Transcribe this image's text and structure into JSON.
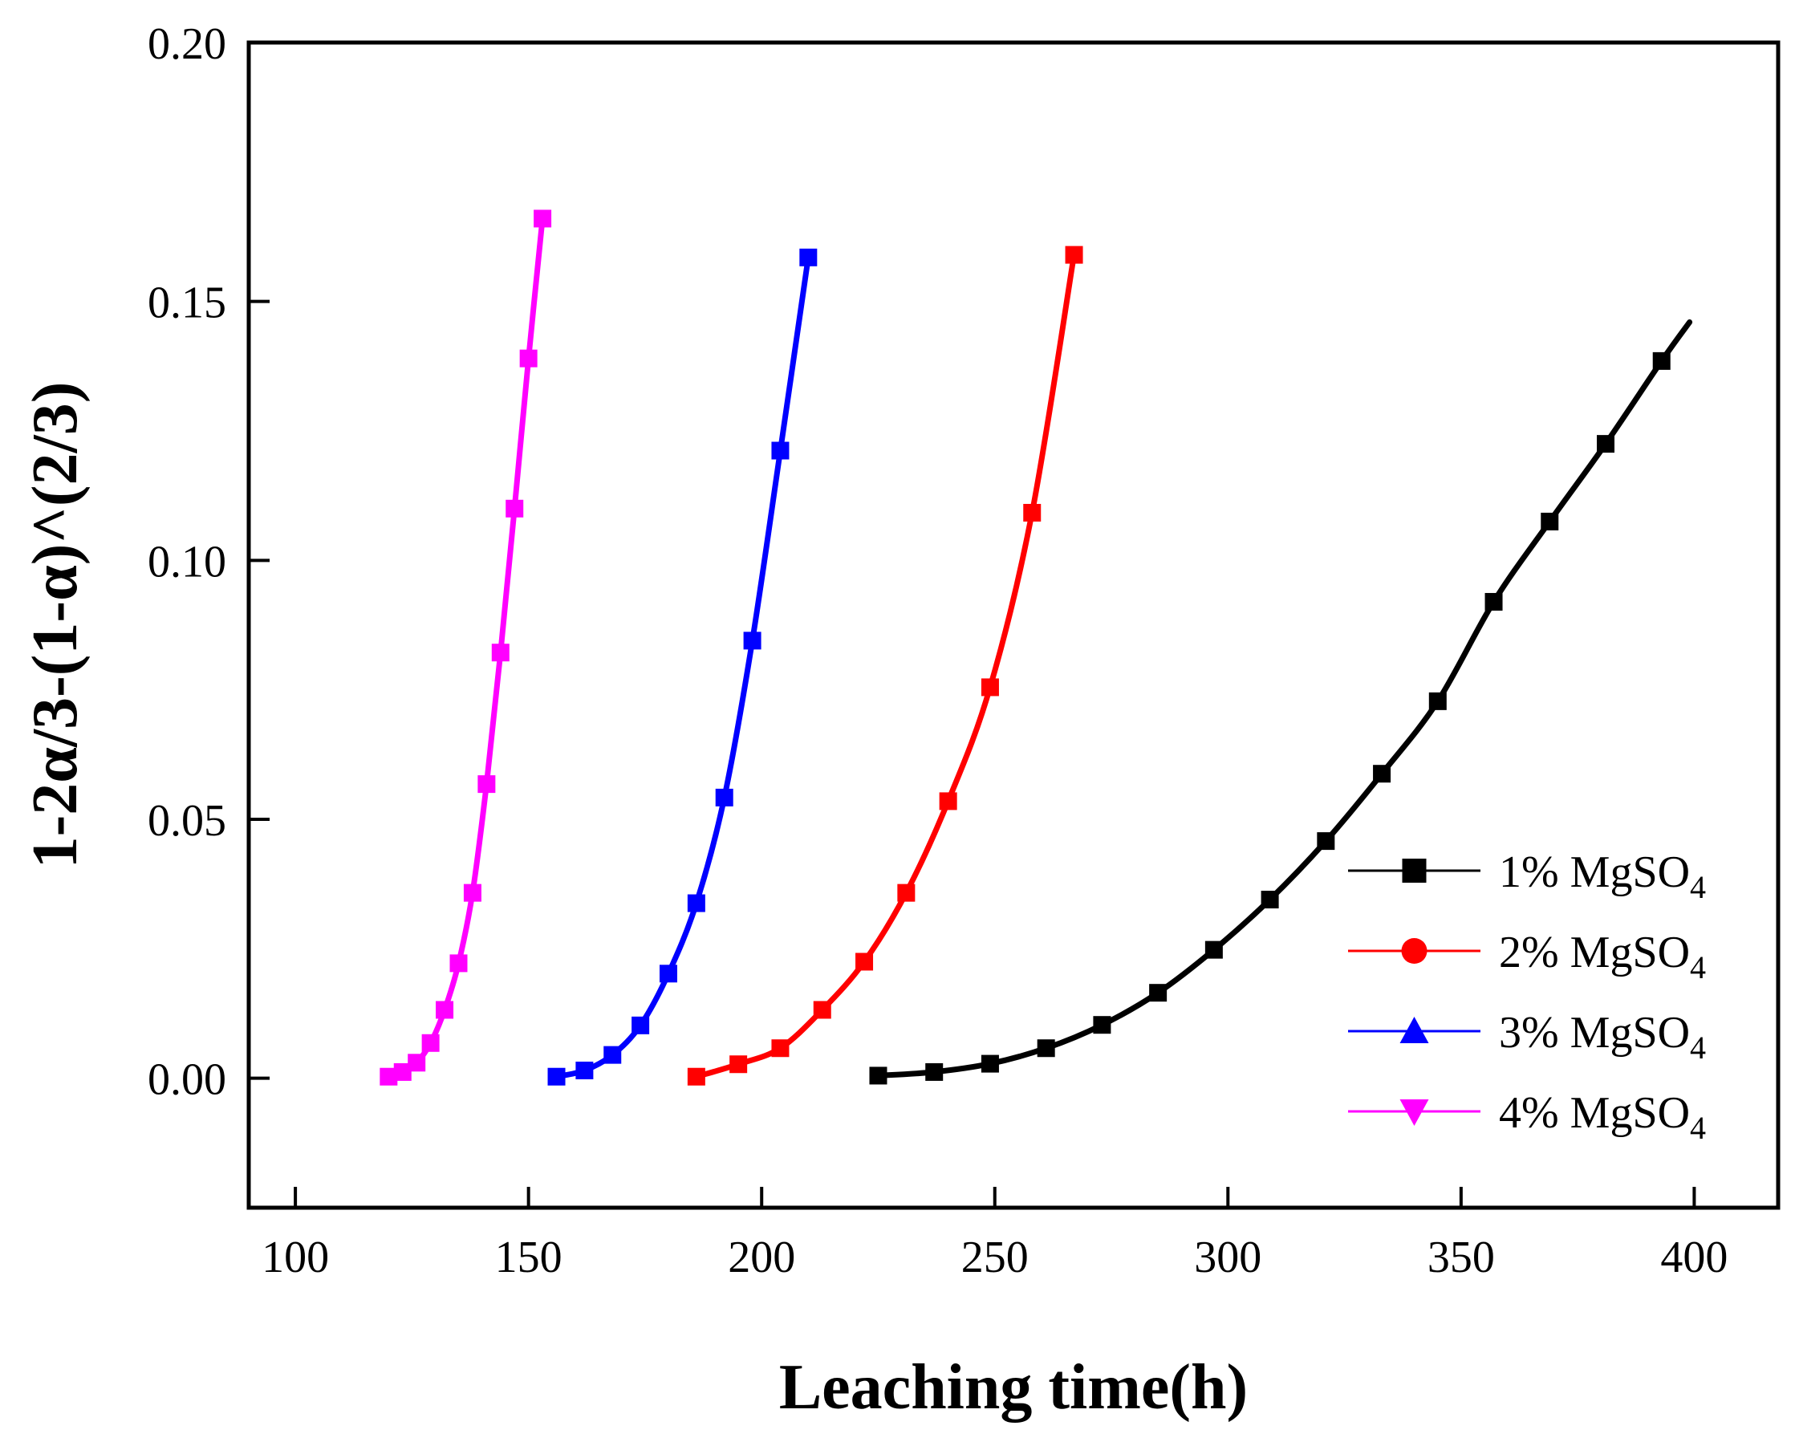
{
  "chart_data": {
    "type": "line",
    "title": "",
    "xlabel": "Leaching time(h)",
    "ylabel": "1-2α/3-(1-α)^(2/3)",
    "xlim": [
      90,
      418
    ],
    "ylim": [
      -0.025,
      0.2
    ],
    "xticks": [
      100,
      150,
      200,
      250,
      300,
      350,
      400
    ],
    "yticks": [
      0.0,
      0.05,
      0.1,
      0.15,
      0.2
    ],
    "xtick_labels": [
      "100",
      "150",
      "200",
      "250",
      "300",
      "350",
      "400"
    ],
    "ytick_labels": [
      "0.00",
      "0.05",
      "0.10",
      "0.15",
      "0.20"
    ],
    "legend_position": "bottom-right",
    "series": [
      {
        "name": "1% MgSO",
        "subscript": "4",
        "color": "#000000",
        "marker": "square",
        "legend_marker": "square",
        "x": [
          225,
          237,
          249,
          261,
          273,
          285,
          297,
          309,
          321,
          333,
          345,
          357,
          369,
          381,
          393
        ],
        "y": [
          0.0005,
          0.0012,
          0.0028,
          0.0058,
          0.0103,
          0.0165,
          0.0248,
          0.0345,
          0.0458,
          0.0588,
          0.0728,
          0.092,
          0.1075,
          0.1225,
          0.1385
        ],
        "line_end": [
          399,
          0.146
        ]
      },
      {
        "name": "2% MgSO",
        "subscript": "4",
        "color": "#ff0000",
        "marker": "square",
        "legend_marker": "circle",
        "x": [
          186,
          195,
          204,
          213,
          222,
          231,
          240,
          249,
          258,
          267
        ],
        "y": [
          0.0003,
          0.0027,
          0.0058,
          0.0132,
          0.0225,
          0.0358,
          0.0535,
          0.0755,
          0.1092,
          0.159
        ]
      },
      {
        "name": "3% MgSO",
        "subscript": "4",
        "color": "#0000ff",
        "marker": "square",
        "legend_marker": "triangle-up",
        "x": [
          156,
          162,
          168,
          174,
          180,
          186,
          192,
          198,
          204,
          210
        ],
        "y": [
          0.0003,
          0.0015,
          0.0045,
          0.0102,
          0.0202,
          0.0338,
          0.0542,
          0.0845,
          0.1212,
          0.1585
        ]
      },
      {
        "name": "4% MgSO",
        "subscript": "4",
        "color": "#ff00ff",
        "marker": "square",
        "legend_marker": "triangle-down",
        "x": [
          120,
          123,
          126,
          129,
          132,
          135,
          138,
          141,
          144,
          147,
          150,
          153
        ],
        "y": [
          0.0003,
          0.0012,
          0.003,
          0.0068,
          0.0132,
          0.0222,
          0.0358,
          0.0568,
          0.0822,
          0.11,
          0.139,
          0.166
        ]
      }
    ]
  }
}
